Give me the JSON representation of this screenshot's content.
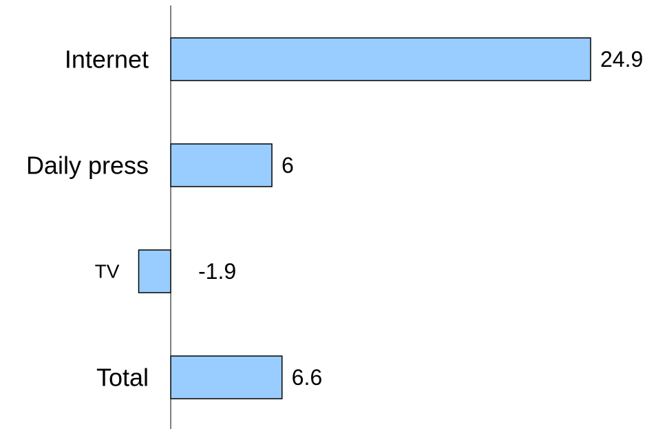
{
  "chart_data": {
    "type": "bar",
    "orientation": "horizontal",
    "categories": [
      "Internet",
      "Daily press",
      "TV",
      "Total"
    ],
    "values": [
      24.9,
      6,
      -1.9,
      6.6
    ],
    "value_labels": [
      "24.9",
      "6",
      "-1.9",
      "6.6"
    ],
    "title": "",
    "xlabel": "",
    "ylabel": "",
    "grid": false,
    "legend": "none",
    "colors": {
      "bar_fill": "#99CCFF",
      "bar_stroke": "#000000",
      "axis": "#000000",
      "text": "#000000"
    }
  }
}
